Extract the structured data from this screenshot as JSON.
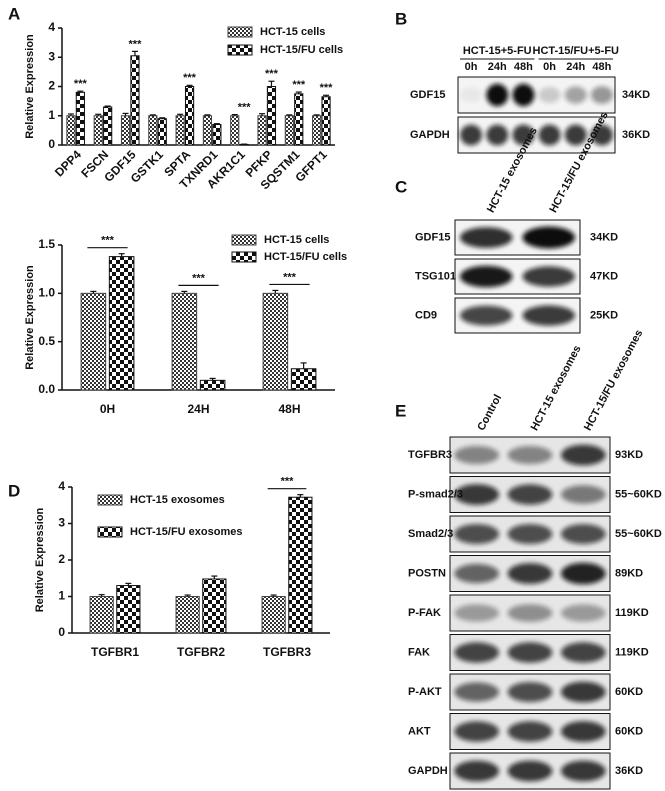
{
  "panel_labels": [
    "A",
    "B",
    "C",
    "D",
    "E"
  ],
  "chart_data": [
    {
      "type": "bar",
      "ylabel": "Relative Expression",
      "categories": [
        "DPP4",
        "FSCN",
        "GDF15",
        "GSTK1",
        "SPTA",
        "TXNRD1",
        "AKR1C1",
        "PFKP",
        "SQSTM1",
        "GFPT1"
      ],
      "series": [
        {
          "name": "HCT-15  cells",
          "color": "#444444",
          "values": [
            1.0,
            1.0,
            1.0,
            1.0,
            1.0,
            1.0,
            1.0,
            1.0,
            1.0,
            1.0
          ],
          "errors": [
            0.06,
            0.05,
            0.08,
            0.03,
            0.05,
            0.03,
            0.04,
            0.07,
            0.03,
            0.03
          ]
        },
        {
          "name": "HCT-15/FU cells",
          "color": "#111111",
          "values": [
            1.8,
            1.3,
            3.05,
            0.9,
            2.0,
            0.7,
            0.02,
            2.0,
            1.75,
            1.65
          ],
          "errors": [
            0.04,
            0.03,
            0.15,
            0.03,
            0.04,
            0.03,
            0.01,
            0.18,
            0.06,
            0.05
          ]
        }
      ],
      "significance": [
        "***",
        null,
        "***",
        null,
        "***",
        null,
        "***",
        "***",
        "***",
        "***"
      ],
      "ylim": [
        0,
        4
      ],
      "yticks": [
        0,
        1,
        2,
        3,
        4
      ]
    },
    {
      "type": "bar",
      "ylabel": "Relative Expression",
      "categories": [
        "0H",
        "24H",
        "48H"
      ],
      "series": [
        {
          "name": "HCT-15  cells",
          "color": "#444444",
          "values": [
            1.0,
            1.0,
            1.0
          ],
          "errors": [
            0.02,
            0.02,
            0.03
          ]
        },
        {
          "name": "HCT-15/FU cells",
          "color": "#111111",
          "values": [
            1.38,
            0.1,
            0.22
          ],
          "errors": [
            0.03,
            0.02,
            0.06
          ]
        }
      ],
      "significance": [
        "***",
        "***",
        "***"
      ],
      "ylim": [
        0,
        1.5
      ],
      "yticks": [
        {
          "value": 0,
          "label": "0.0"
        },
        {
          "value": 0.5,
          "label": "0.5"
        },
        {
          "value": 1,
          "label": "1.0"
        },
        {
          "value": 1.5,
          "label": "1.5"
        }
      ]
    },
    {
      "type": "bar",
      "ylabel": "Relative Expression",
      "categories": [
        "TGFBR1",
        "TGFBR2",
        "TGFBR3"
      ],
      "series": [
        {
          "name": "HCT-15 exosomes",
          "color": "#444444",
          "values": [
            1.0,
            1.0,
            1.0
          ],
          "errors": [
            0.05,
            0.04,
            0.04
          ]
        },
        {
          "name": "HCT-15/FU exosomes",
          "color": "#111111",
          "values": [
            1.3,
            1.48,
            3.72
          ],
          "errors": [
            0.06,
            0.08,
            0.07
          ]
        }
      ],
      "significance": [
        null,
        null,
        "***"
      ],
      "ylim": [
        0,
        4
      ],
      "yticks": [
        0,
        1,
        2,
        3,
        4
      ]
    }
  ],
  "blots": [
    {
      "groups": [
        "HCT-15+5-FU",
        "HCT-15/FU+5-FU"
      ],
      "lanes": [
        "0h",
        "24h",
        "48h",
        "0h",
        "24h",
        "48h"
      ],
      "rows": [
        {
          "protein": "GDF15",
          "size": "34KD"
        },
        {
          "protein": "GAPDH",
          "size": "36KD"
        }
      ]
    },
    {
      "lanes": [
        "HCT-15 exosomes",
        "HCT-15/FU exosomes"
      ],
      "rows": [
        {
          "protein": "GDF15",
          "size": "34KD"
        },
        {
          "protein": "TSG101",
          "size": "47KD"
        },
        {
          "protein": "CD9",
          "size": "25KD"
        }
      ]
    },
    {
      "lanes": [
        "Control",
        "HCT-15 exosomes",
        "HCT-15/FU exosomes"
      ],
      "rows": [
        {
          "protein": "TGFBR3",
          "size": "93KD"
        },
        {
          "protein": "P-smad2/3",
          "size": "55~60KD"
        },
        {
          "protein": "Smad2/3",
          "size": "55~60KD"
        },
        {
          "protein": "POSTN",
          "size": "89KD"
        },
        {
          "protein": "P-FAK",
          "size": "119KD"
        },
        {
          "protein": "FAK",
          "size": "119KD"
        },
        {
          "protein": "P-AKT",
          "size": "60KD"
        },
        {
          "protein": "AKT",
          "size": "60KD"
        },
        {
          "protein": "GAPDH",
          "size": "36KD"
        }
      ]
    }
  ]
}
